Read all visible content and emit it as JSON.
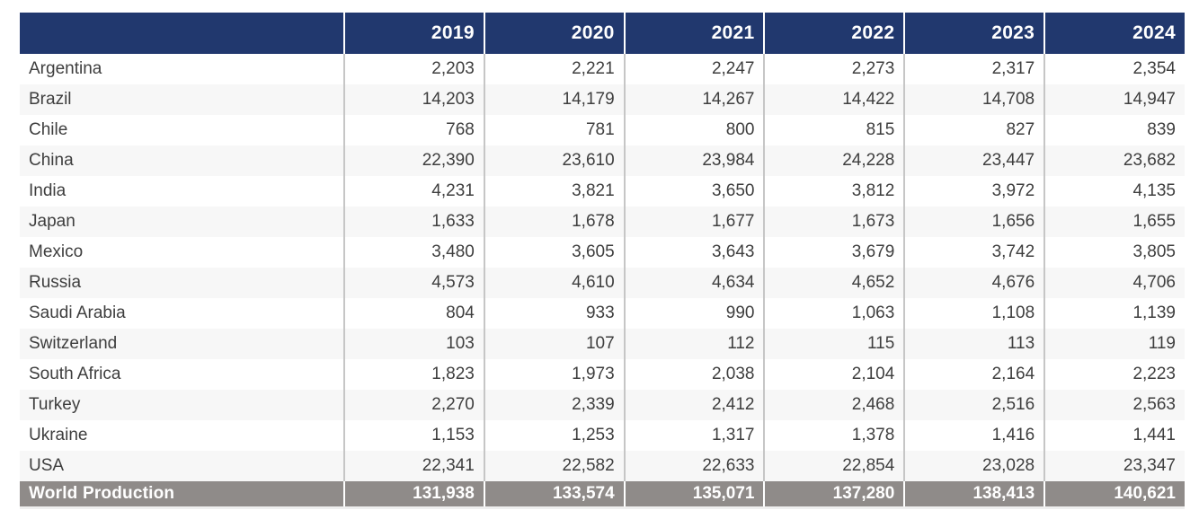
{
  "colors": {
    "header_bg": "#21386E",
    "header_text": "#FFFFFF",
    "body_text": "#3E3E3E",
    "row_plain": "#FFFFFF",
    "row_stripe": "#F7F7F7",
    "divider": "#C6C6C6",
    "total_bg": "#8F8B89",
    "total_text": "#FFFFFF"
  },
  "chart_data": {
    "type": "table",
    "columns": [
      "",
      "2019",
      "2020",
      "2021",
      "2022",
      "2023",
      "2024"
    ],
    "rows": [
      {
        "label": "Argentina",
        "values": [
          "2,203",
          "2,221",
          "2,247",
          "2,273",
          "2,317",
          "2,354"
        ]
      },
      {
        "label": "Brazil",
        "values": [
          "14,203",
          "14,179",
          "14,267",
          "14,422",
          "14,708",
          "14,947"
        ]
      },
      {
        "label": "Chile",
        "values": [
          "768",
          "781",
          "800",
          "815",
          "827",
          "839"
        ]
      },
      {
        "label": "China",
        "values": [
          "22,390",
          "23,610",
          "23,984",
          "24,228",
          "23,447",
          "23,682"
        ]
      },
      {
        "label": "India",
        "values": [
          "4,231",
          "3,821",
          "3,650",
          "3,812",
          "3,972",
          "4,135"
        ]
      },
      {
        "label": "Japan",
        "values": [
          "1,633",
          "1,678",
          "1,677",
          "1,673",
          "1,656",
          "1,655"
        ]
      },
      {
        "label": "Mexico",
        "values": [
          "3,480",
          "3,605",
          "3,643",
          "3,679",
          "3,742",
          "3,805"
        ]
      },
      {
        "label": "Russia",
        "values": [
          "4,573",
          "4,610",
          "4,634",
          "4,652",
          "4,676",
          "4,706"
        ]
      },
      {
        "label": "Saudi Arabia",
        "values": [
          "804",
          "933",
          "990",
          "1,063",
          "1,108",
          "1,139"
        ]
      },
      {
        "label": "Switzerland",
        "values": [
          "103",
          "107",
          "112",
          "115",
          "113",
          "119"
        ]
      },
      {
        "label": "South Africa",
        "values": [
          "1,823",
          "1,973",
          "2,038",
          "2,104",
          "2,164",
          "2,223"
        ]
      },
      {
        "label": "Turkey",
        "values": [
          "2,270",
          "2,339",
          "2,412",
          "2,468",
          "2,516",
          "2,563"
        ]
      },
      {
        "label": "Ukraine",
        "values": [
          "1,153",
          "1,253",
          "1,317",
          "1,378",
          "1,416",
          "1,441"
        ]
      },
      {
        "label": "USA",
        "values": [
          "22,341",
          "22,582",
          "22,633",
          "22,854",
          "23,028",
          "23,347"
        ]
      }
    ],
    "total_row": {
      "label": "World Production",
      "values": [
        "131,938",
        "133,574",
        "135,071",
        "137,280",
        "138,413",
        "140,621"
      ]
    }
  }
}
